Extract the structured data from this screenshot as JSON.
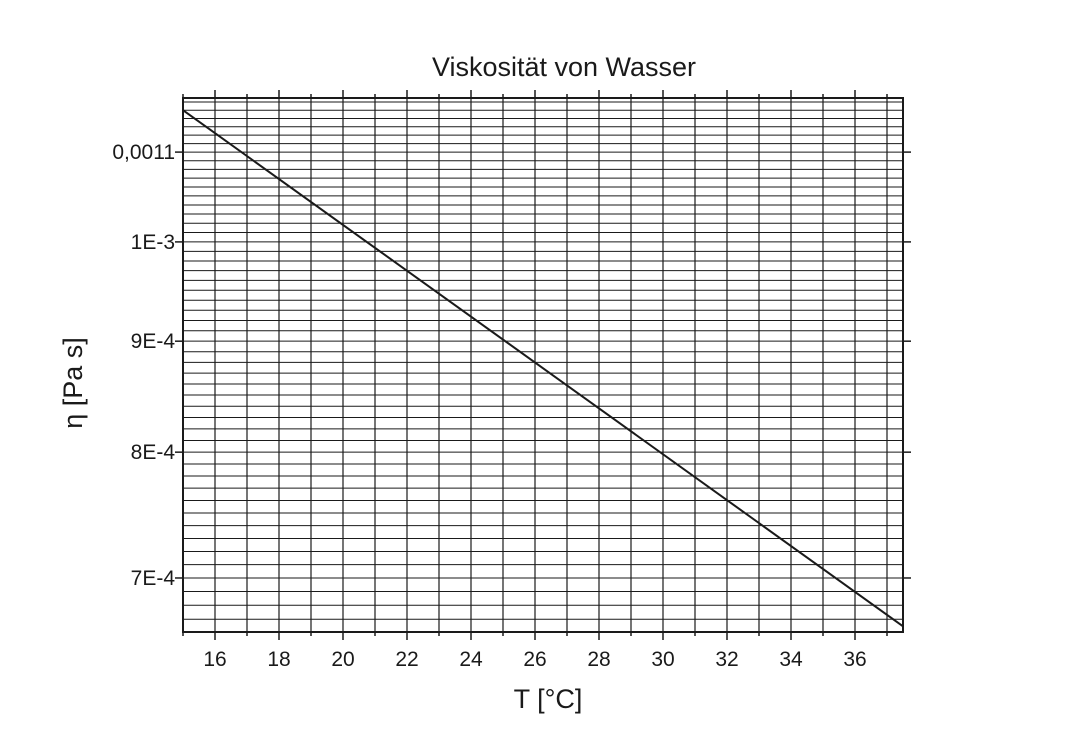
{
  "chart_data": {
    "type": "line",
    "title": "Viskosität von Wasser",
    "xlabel": "T [°C]",
    "ylabel": "η [Pa s]",
    "y_scale": "log",
    "xlim": [
      15,
      37.5
    ],
    "ylim": [
      0.000661,
      0.001165
    ],
    "x_ticks": [
      16,
      18,
      20,
      22,
      24,
      26,
      28,
      30,
      32,
      34,
      36
    ],
    "x_tick_labels": [
      "16",
      "18",
      "20",
      "22",
      "24",
      "26",
      "28",
      "30",
      "32",
      "34",
      "36"
    ],
    "y_ticks": [
      0.0011,
      0.001,
      0.0009,
      0.0008,
      0.0007
    ],
    "y_tick_labels": [
      "0,0011",
      "1E-3",
      "9E-4",
      "8E-4",
      "7E-4"
    ],
    "grid": true,
    "series": [
      {
        "x": [
          15,
          37.5
        ],
        "y": [
          0.00115,
          0.000665
        ]
      }
    ],
    "colors": {
      "line": "#1a1a1a",
      "grid": "#1a1a1a",
      "axes": "#1a1a1a"
    }
  }
}
